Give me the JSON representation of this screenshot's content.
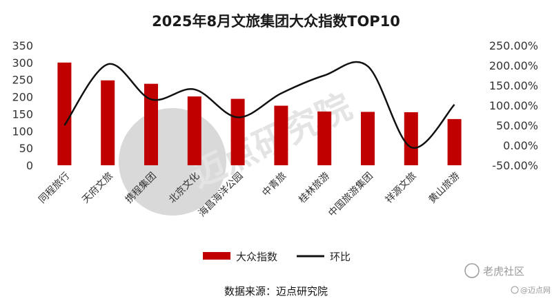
{
  "colors": {
    "bar": "#c00000",
    "line": "#111111",
    "watermark": "#dddddd"
  },
  "watermark": {
    "text": "迈点研究院"
  },
  "corner_watermark": {
    "main": "老虎社区",
    "sub": "@迈点网"
  },
  "source_text": "数据来源：迈点研究院",
  "chart_data": {
    "type": "bar",
    "title": "2025年8月文旅集团大众指数TOP10",
    "categories": [
      "同程旅行",
      "天府文旅",
      "携程集团",
      "北京文化",
      "海昌海洋公园",
      "中青旅",
      "桂林旅游",
      "中国旅游集团",
      "祥源文旅",
      "黄山旅游"
    ],
    "series": [
      {
        "name": "大众指数",
        "type": "bar",
        "axis": "left",
        "values": [
          300,
          248,
          238,
          201,
          194,
          174,
          157,
          156,
          155,
          135
        ]
      },
      {
        "name": "环比",
        "type": "line",
        "axis": "right",
        "unit": "%",
        "values": [
          50,
          203,
          115,
          140,
          70,
          130,
          175,
          198,
          -5,
          102
        ]
      }
    ],
    "left_axis": {
      "ylim": [
        0,
        350
      ],
      "ticks": [
        "0",
        "50",
        "100",
        "150",
        "200",
        "250",
        "300",
        "350"
      ]
    },
    "right_axis": {
      "ylim": [
        -50,
        250
      ],
      "ticks": [
        "-50.00%",
        "0.00%",
        "50.00%",
        "100.00%",
        "150.00%",
        "200.00%",
        "250.00%"
      ]
    },
    "legend_position": "bottom",
    "grid": false
  }
}
